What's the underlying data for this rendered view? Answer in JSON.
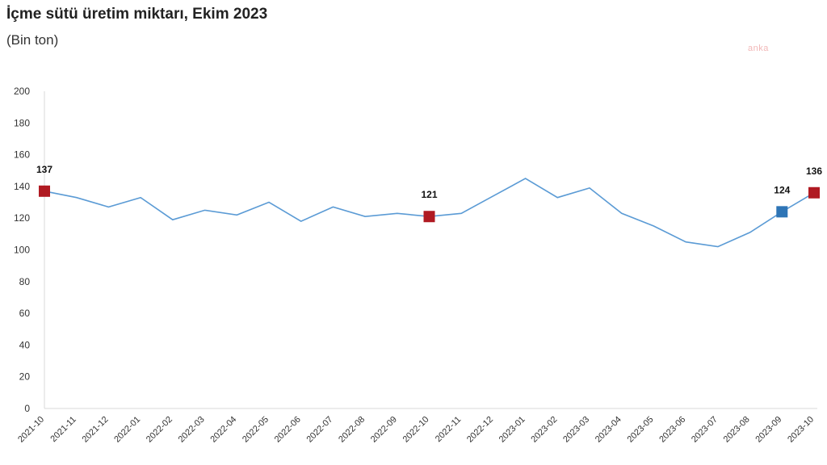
{
  "title": "İçme sütü üretim miktarı, Ekim 2023",
  "subtitle": "(Bin ton)",
  "watermark": "anka",
  "colors": {
    "line": "#5b9bd5",
    "marker_red": "#b01a22",
    "marker_blue": "#2e75b6",
    "axis": "#d9d9d9"
  },
  "chart_data": {
    "type": "line",
    "title": "İçme sütü üretim miktarı, Ekim 2023",
    "subtitle": "(Bin ton)",
    "xlabel": "",
    "ylabel": "",
    "ylim": [
      0,
      200
    ],
    "yticks": [
      0,
      20,
      40,
      60,
      80,
      100,
      120,
      140,
      160,
      180,
      200
    ],
    "grid": false,
    "categories": [
      "2021-10",
      "2021-11",
      "2021-12",
      "2022-01",
      "2022-02",
      "2022-03",
      "2022-04",
      "2022-05",
      "2022-06",
      "2022-07",
      "2022-08",
      "2022-09",
      "2022-10",
      "2022-11",
      "2022-12",
      "2023-01",
      "2023-02",
      "2023-03",
      "2023-04",
      "2023-05",
      "2023-06",
      "2023-07",
      "2023-08",
      "2023-09",
      "2023-10"
    ],
    "series": [
      {
        "values": [
          137,
          133,
          127,
          133,
          119,
          125,
          122,
          130,
          118,
          127,
          121,
          123,
          121,
          123,
          134,
          145,
          133,
          139,
          123,
          115,
          105,
          102,
          111,
          124,
          136
        ]
      }
    ],
    "highlighted_points": [
      {
        "category": "2021-10",
        "value": 137,
        "label": "137",
        "color": "#b01a22"
      },
      {
        "category": "2022-10",
        "value": 121,
        "label": "121",
        "color": "#b01a22"
      },
      {
        "category": "2023-09",
        "value": 124,
        "label": "124",
        "color": "#2e75b6"
      },
      {
        "category": "2023-10",
        "value": 136,
        "label": "136",
        "color": "#b01a22"
      }
    ]
  }
}
